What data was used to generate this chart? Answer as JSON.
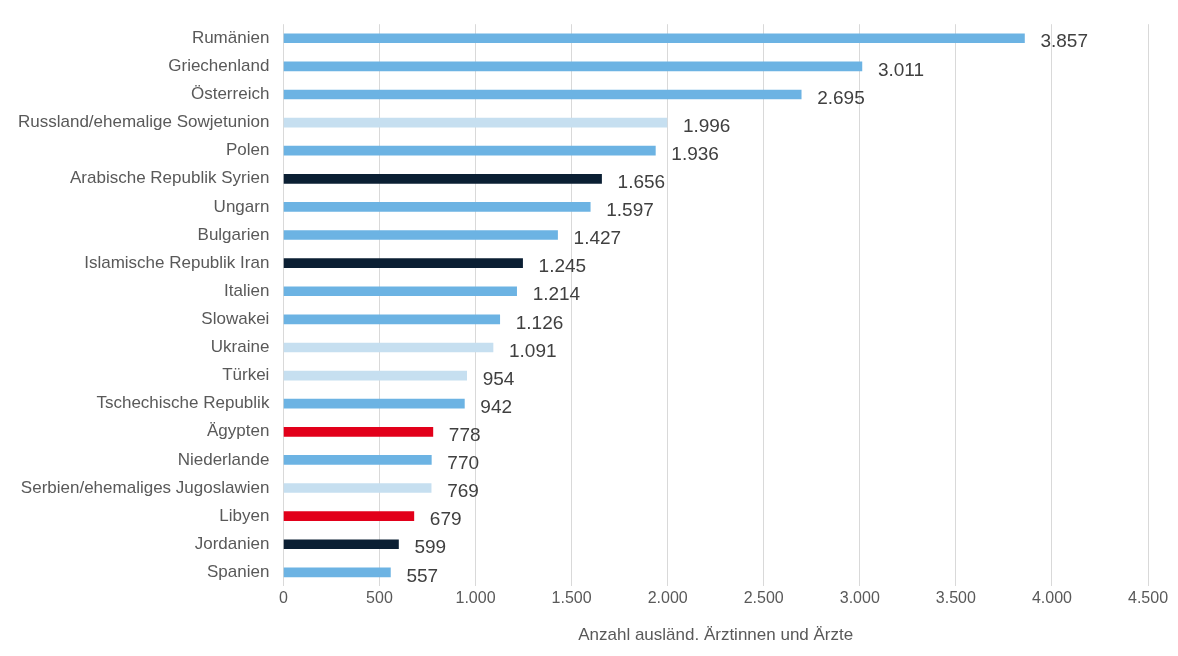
{
  "chart_data": {
    "type": "bar",
    "orientation": "horizontal",
    "xlabel": "Anzahl ausländ. Ärztinnen und Ärzte",
    "categories": [
      "Rumänien",
      "Griechenland",
      "Österreich",
      "Russland/ehemalige Sowjetunion",
      "Polen",
      "Arabische Republik Syrien",
      "Ungarn",
      "Bulgarien",
      "Islamische Republik Iran",
      "Italien",
      "Slowakei",
      "Ukraine",
      "Türkei",
      "Tschechische Republik",
      "Ägypten",
      "Niederlande",
      "Serbien/ehemaliges Jugoslawien",
      "Libyen",
      "Jordanien",
      "Spanien"
    ],
    "values": [
      3857,
      3011,
      2695,
      1996,
      1936,
      1656,
      1597,
      1427,
      1245,
      1214,
      1126,
      1091,
      954,
      942,
      778,
      770,
      769,
      679,
      599,
      557
    ],
    "colors": [
      "#6cb3e3",
      "#6cb3e3",
      "#6cb3e3",
      "#c6dff0",
      "#6cb3e3",
      "#0b1f33",
      "#6cb3e3",
      "#6cb3e3",
      "#0b1f33",
      "#6cb3e3",
      "#6cb3e3",
      "#c6dff0",
      "#c6dff0",
      "#6cb3e3",
      "#e2001a",
      "#6cb3e3",
      "#c6dff0",
      "#e2001a",
      "#0b1f33",
      "#6cb3e3"
    ],
    "value_labels": [
      "3.857",
      "3.011",
      "2.695",
      "1.996",
      "1.936",
      "1.656",
      "1.597",
      "1.427",
      "1.245",
      "1.214",
      "1.126",
      "1.091",
      "954",
      "942",
      "778",
      "770",
      "769",
      "679",
      "599",
      "557"
    ],
    "xlim": [
      0,
      4500
    ],
    "xticks": [
      0,
      500,
      {
        "value": 1000,
        "label": "1.000"
      },
      {
        "value": 1500,
        "label": "1.500"
      },
      {
        "value": 2000,
        "label": "2.000"
      },
      {
        "value": 2500,
        "label": "2.500"
      },
      {
        "value": 3000,
        "label": "3.000"
      },
      {
        "value": 3500,
        "label": "3.500"
      },
      {
        "value": 4000,
        "label": "4.000"
      },
      {
        "value": 4500,
        "label": "4.500"
      }
    ],
    "grid": "x",
    "legend": false
  }
}
